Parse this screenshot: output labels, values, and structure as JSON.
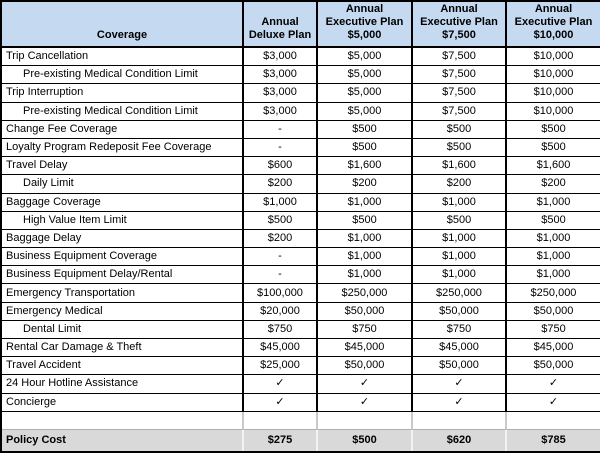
{
  "colors": {
    "header_bg": "#c5d9f1",
    "policy_row_bg": "#d9d9d9",
    "border": "#000000"
  },
  "chart_data": {
    "type": "table",
    "title": "Travel insurance coverage comparison by plan",
    "columns": [
      "Coverage",
      "Annual\nDeluxe Plan",
      "Annual\nExecutive Plan\n$5,000",
      "Annual\nExecutive Plan\n$7,500",
      "Annual\nExecutive Plan\n$10,000"
    ],
    "rows": [
      {
        "label": "Trip Cancellation",
        "indent": false,
        "kind": "normal",
        "values": [
          "$3,000",
          "$5,000",
          "$7,500",
          "$10,000"
        ]
      },
      {
        "label": "Pre-existing Medical Condition Limit",
        "indent": true,
        "kind": "normal",
        "values": [
          "$3,000",
          "$5,000",
          "$7,500",
          "$10,000"
        ]
      },
      {
        "label": "Trip Interruption",
        "indent": false,
        "kind": "normal",
        "values": [
          "$3,000",
          "$5,000",
          "$7,500",
          "$10,000"
        ]
      },
      {
        "label": "Pre-existing Medical Condition Limit",
        "indent": true,
        "kind": "normal",
        "values": [
          "$3,000",
          "$5,000",
          "$7,500",
          "$10,000"
        ]
      },
      {
        "label": "Change Fee Coverage",
        "indent": false,
        "kind": "normal",
        "values": [
          "-",
          "$500",
          "$500",
          "$500"
        ]
      },
      {
        "label": "Loyalty Program Redeposit Fee Coverage",
        "indent": false,
        "kind": "normal",
        "values": [
          "-",
          "$500",
          "$500",
          "$500"
        ]
      },
      {
        "label": "Travel Delay",
        "indent": false,
        "kind": "normal",
        "values": [
          "$600",
          "$1,600",
          "$1,600",
          "$1,600"
        ]
      },
      {
        "label": "Daily Limit",
        "indent": true,
        "kind": "normal",
        "values": [
          "$200",
          "$200",
          "$200",
          "$200"
        ]
      },
      {
        "label": "Baggage Coverage",
        "indent": false,
        "kind": "normal",
        "values": [
          "$1,000",
          "$1,000",
          "$1,000",
          "$1,000"
        ]
      },
      {
        "label": "High Value Item Limit",
        "indent": true,
        "kind": "normal",
        "values": [
          "$500",
          "$500",
          "$500",
          "$500"
        ]
      },
      {
        "label": "Baggage Delay",
        "indent": false,
        "kind": "normal",
        "values": [
          "$200",
          "$1,000",
          "$1,000",
          "$1,000"
        ]
      },
      {
        "label": "Business Equipment Coverage",
        "indent": false,
        "kind": "normal",
        "values": [
          "-",
          "$1,000",
          "$1,000",
          "$1,000"
        ]
      },
      {
        "label": "Business Equipment Delay/Rental",
        "indent": false,
        "kind": "normal",
        "values": [
          "-",
          "$1,000",
          "$1,000",
          "$1,000"
        ]
      },
      {
        "label": "Emergency Transportation",
        "indent": false,
        "kind": "normal",
        "values": [
          "$100,000",
          "$250,000",
          "$250,000",
          "$250,000"
        ]
      },
      {
        "label": "Emergency Medical",
        "indent": false,
        "kind": "normal",
        "values": [
          "$20,000",
          "$50,000",
          "$50,000",
          "$50,000"
        ]
      },
      {
        "label": "Dental Limit",
        "indent": true,
        "kind": "normal",
        "values": [
          "$750",
          "$750",
          "$750",
          "$750"
        ]
      },
      {
        "label": "Rental Car Damage & Theft",
        "indent": false,
        "kind": "normal",
        "values": [
          "$45,000",
          "$45,000",
          "$45,000",
          "$45,000"
        ]
      },
      {
        "label": "Travel Accident",
        "indent": false,
        "kind": "normal",
        "values": [
          "$25,000",
          "$50,000",
          "$50,000",
          "$50,000"
        ]
      },
      {
        "label": "24 Hour Hotline Assistance",
        "indent": false,
        "kind": "normal",
        "values": [
          "✓",
          "✓",
          "✓",
          "✓"
        ]
      },
      {
        "label": "Concierge",
        "indent": false,
        "kind": "normal",
        "values": [
          "✓",
          "✓",
          "✓",
          "✓"
        ]
      },
      {
        "label": "",
        "indent": false,
        "kind": "empty",
        "values": [
          "",
          "",
          "",
          ""
        ]
      },
      {
        "label": "Policy Cost",
        "indent": false,
        "kind": "policy",
        "values": [
          "$275",
          "$500",
          "$620",
          "$785"
        ]
      }
    ]
  }
}
